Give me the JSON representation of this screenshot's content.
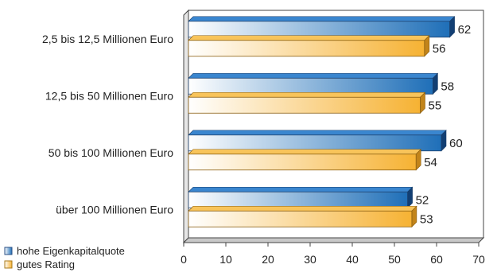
{
  "chart_data": {
    "type": "bar",
    "orientation": "horizontal",
    "categories": [
      "2,5 bis 12,5 Millionen Euro",
      "12,5 bis 50 Millionen Euro",
      "50 bis 100 Millionen Euro",
      "über 100 Millionen Euro"
    ],
    "series": [
      {
        "name": "hohe Eigenkapitalquote",
        "values": [
          62,
          58,
          60,
          52
        ],
        "color": "#1f6fb8"
      },
      {
        "name": "gutes Rating",
        "values": [
          56,
          55,
          54,
          53
        ],
        "color": "#f6b233"
      }
    ],
    "xlim": [
      0,
      70
    ],
    "xticks": [
      0,
      10,
      20,
      30,
      40,
      50,
      60,
      70
    ],
    "grid": false,
    "legend_position": "bottom-left",
    "three_d": true,
    "title": "",
    "xlabel": "",
    "ylabel": ""
  }
}
